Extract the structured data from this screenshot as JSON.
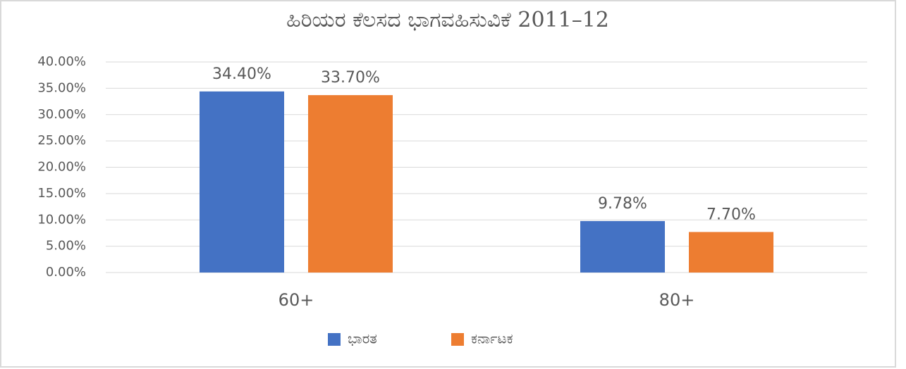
{
  "chart_data": {
    "type": "bar",
    "title": "ಹಿರಿಯರ ಕೆಲಸದ ಭಾಗವಹಿಸುವಿಕೆ 2011–12",
    "categories": [
      "60+",
      "80+"
    ],
    "series": [
      {
        "name": "ಭಾರತ",
        "color": "#4472c4",
        "values": [
          34.4,
          9.78
        ],
        "value_labels": [
          "34.40%",
          "9.78%"
        ]
      },
      {
        "name": "ಕರ್ನಾಟಕ",
        "color": "#ed7d31",
        "values": [
          33.7,
          7.7
        ],
        "value_labels": [
          "33.70%",
          "7.70%"
        ]
      }
    ],
    "ylim": [
      0,
      40
    ],
    "yticks": [
      {
        "value": 0,
        "label": "0.00%"
      },
      {
        "value": 5,
        "label": "5.00%"
      },
      {
        "value": 10,
        "label": "10.00%"
      },
      {
        "value": 15,
        "label": "15.00%"
      },
      {
        "value": 20,
        "label": "20.00%"
      },
      {
        "value": 25,
        "label": "25.00%"
      },
      {
        "value": 30,
        "label": "30.00%"
      },
      {
        "value": 35,
        "label": "35.00%"
      },
      {
        "value": 40,
        "label": "40.00%"
      }
    ],
    "grid": true,
    "legend": "bottom"
  }
}
